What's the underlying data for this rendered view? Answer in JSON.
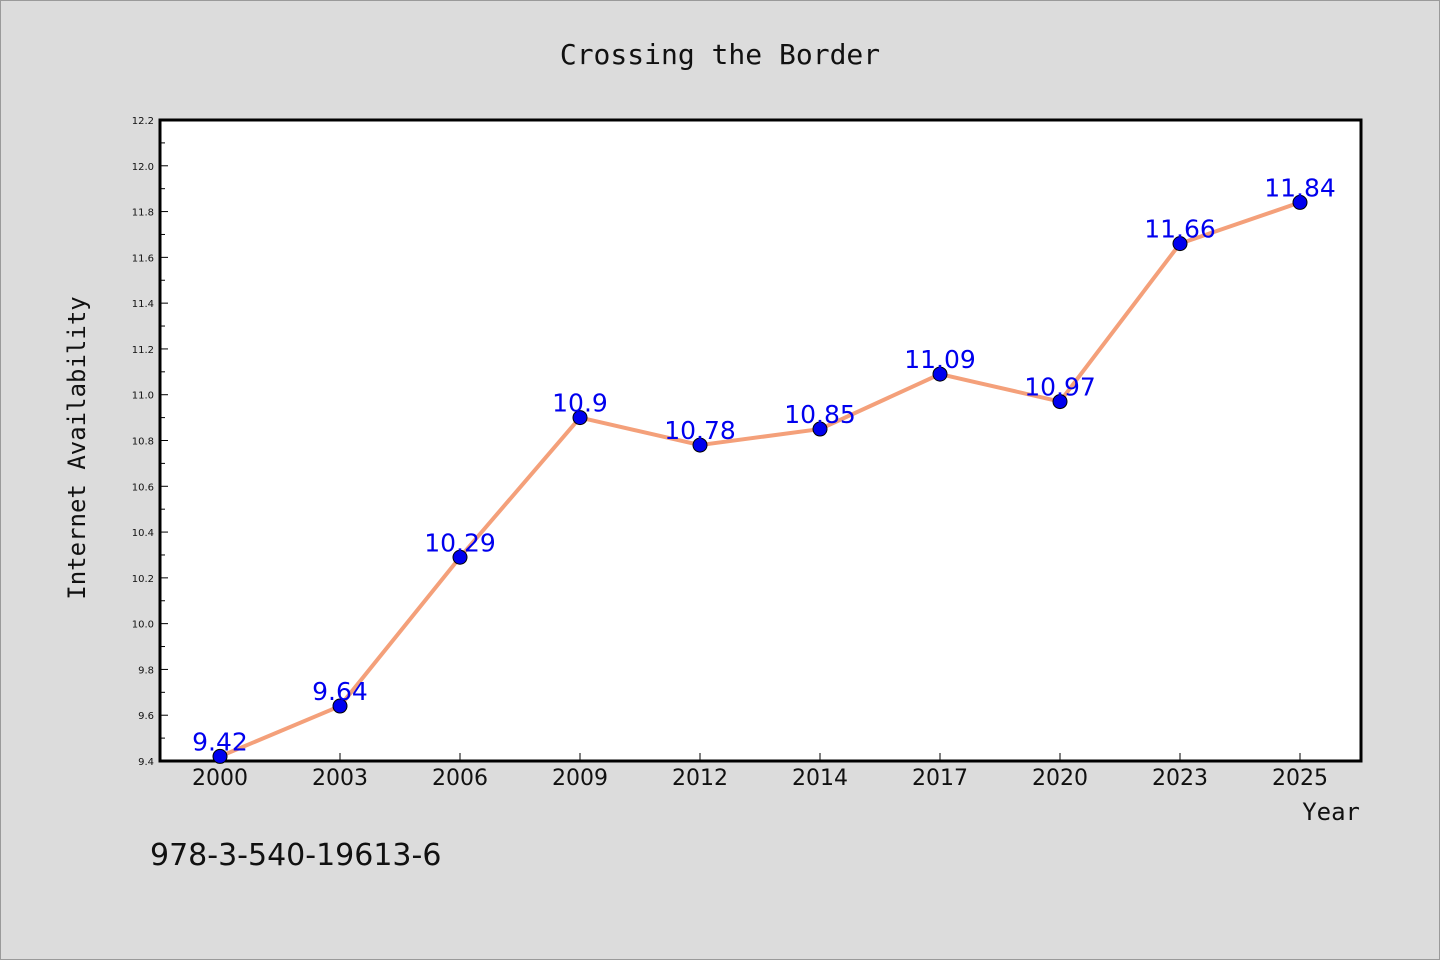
{
  "chart_data": {
    "type": "line",
    "title": "Crossing the Border",
    "xlabel": "Year",
    "ylabel": "Internet Availability",
    "categories": [
      "2000",
      "2003",
      "2006",
      "2009",
      "2012",
      "2014",
      "2017",
      "2020",
      "2023",
      "2025"
    ],
    "series": [
      {
        "values": [
          9.42,
          9.64,
          10.29,
          10.9,
          10.78,
          10.85,
          11.09,
          10.97,
          11.66,
          11.84
        ],
        "labels": [
          "9.42",
          "9.64",
          "10.29",
          "10.9",
          "10.78",
          "10.85",
          "11.09",
          "10.97",
          "11.66",
          "11.84"
        ],
        "line_color": "#f4a07a",
        "marker_color": "#0000ee"
      }
    ],
    "ylim": [
      9.4,
      12.2
    ],
    "yticks": [
      "9.4",
      "9.6",
      "9.8",
      "10.0",
      "10.2",
      "10.4",
      "10.6",
      "10.8",
      "11.0",
      "11.2",
      "11.4",
      "11.6",
      "11.8",
      "12.0",
      "12.2"
    ],
    "grid": false,
    "data_labels": true
  },
  "footer": {
    "isbn": "978-3-540-19613-6"
  }
}
